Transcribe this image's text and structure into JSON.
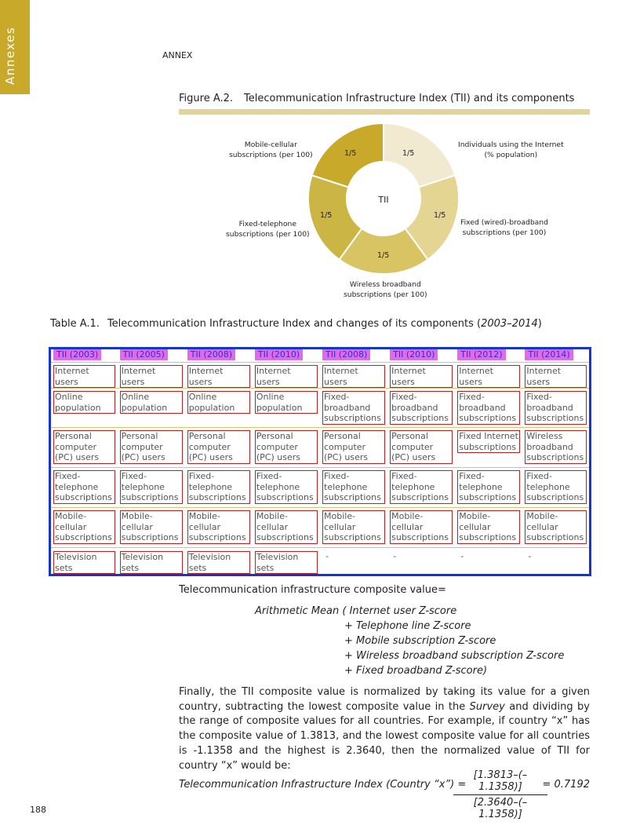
{
  "side_tab": "Annexes",
  "running_head": "ANNEX",
  "page_number": "188",
  "figure": {
    "number": "Figure A.2.",
    "title": "Telecommunication Infrastructure Index (TII) and its components",
    "center_label": "TII",
    "segment_share": "1/5",
    "labels": {
      "internet": [
        "Individuals using the Internet",
        "(% population)"
      ],
      "fixed_broadband": [
        "Fixed (wired)-broadband",
        "subscriptions (per 100)"
      ],
      "wireless": [
        "Wireless broadband",
        "subscriptions (per 100)"
      ],
      "fixed_telephone": [
        "Fixed-telephone",
        "subscriptions (per 100)"
      ],
      "mobile": [
        "Mobile-cellular",
        "subscriptions (per 100)"
      ]
    },
    "colors": [
      "#f2ead0",
      "#e4d592",
      "#d9c463",
      "#cbb544",
      "#c9a92a"
    ],
    "chart_data": {
      "type": "pie",
      "categories": [
        "Individuals using the Internet (% population)",
        "Fixed (wired)-broadband subscriptions (per 100)",
        "Wireless broadband subscriptions (per 100)",
        "Fixed-telephone subscriptions (per 100)",
        "Mobile-cellular subscriptions (per 100)"
      ],
      "values": [
        0.2,
        0.2,
        0.2,
        0.2,
        0.2
      ],
      "slice_labels": [
        "1/5",
        "1/5",
        "1/5",
        "1/5",
        "1/5"
      ],
      "center_label": "TII"
    }
  },
  "table": {
    "number": "Table A.1.",
    "title": "Telecommunication Infrastructure Index and changes of its components (",
    "title_years": "2003–2014",
    "title_end": ")",
    "headers": [
      "TII (2003)",
      "TII (2005)",
      "TII (2008)",
      "TII (2010)",
      "TII (2008)",
      "TII (2010)",
      "TII (2012)",
      "TII (2014)"
    ],
    "rows": [
      [
        "Internet users",
        "Internet users",
        "Internet users",
        "Internet users",
        "Internet users",
        "Internet users",
        "Internet users",
        "Internet users"
      ],
      [
        "Online population",
        "Online population",
        "Online population",
        "Online population",
        "Fixed-broadband subscriptions",
        "Fixed-broadband subscriptions",
        "Fixed-broadband subscriptions",
        "Fixed-broadband subscriptions"
      ],
      [
        "Personal computer (PC) users",
        "Personal computer (PC) users",
        "Personal computer (PC) users",
        "Personal computer (PC) users",
        "Personal computer (PC) users",
        "Personal computer (PC) users",
        "Fixed Internet subscriptions",
        "Wireless broadband subscriptions"
      ],
      [
        "Fixed-telephone subscriptions",
        "Fixed-telephone subscriptions",
        "Fixed-telephone subscriptions",
        "Fixed-telephone subscriptions",
        "Fixed-telephone subscriptions",
        "Fixed-telephone subscriptions",
        "Fixed-telephone subscriptions",
        "Fixed-telephone subscriptions"
      ],
      [
        "Mobile-cellular subscriptions",
        "Mobile-cellular subscriptions",
        "Mobile-cellular subscriptions",
        "Mobile-cellular subscriptions",
        "Mobile-cellular subscriptions",
        "Mobile-cellular subscriptions",
        "Mobile-cellular subscriptions",
        "Mobile-cellular subscriptions"
      ],
      [
        "Television sets",
        "Television sets",
        "Television sets",
        "Television sets",
        "-",
        "-",
        "-",
        "-"
      ]
    ]
  },
  "composite": {
    "lead": "Telecommunication infrastructure composite value=",
    "lines": [
      "Arithmetic Mean ( Internet user Z-score",
      "+ Telephone line Z-score",
      "+ Mobile subscription Z-score",
      "+ Wireless broadband subscription Z-score",
      "+ Fixed broadband Z-score)"
    ]
  },
  "paragraph": {
    "before": "Finally, the TII composite value is normalized by taking its value for a given country, subtracting the lowest composite value in the ",
    "em": "Survey",
    "after": " and dividing by the range of composite values for all countries. For example, if country “x” has the composite value of 1.3813, and the lowest composite value for all countries is -1.1358 and the highest is 2.3640, then the normalized value of TII for country “x” would be:"
  },
  "equation": {
    "lhs": "Telecommunication Infrastructure Index (Country “x”) =",
    "numerator": "[1.3813–(–1.1358)]",
    "denominator": "[2.3640–(–1.1358)]",
    "result": "= 0.7192"
  }
}
